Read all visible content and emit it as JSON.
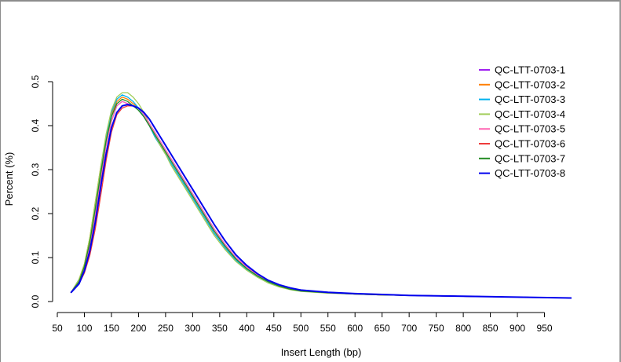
{
  "chart_data": {
    "type": "line",
    "title": "",
    "xlabel": "Insert Length (bp)",
    "ylabel": "Percent (%)",
    "xlim": [
      50,
      1000
    ],
    "ylim": [
      0,
      0.5
    ],
    "x_ticks": [
      50,
      100,
      150,
      200,
      250,
      300,
      350,
      400,
      450,
      500,
      550,
      600,
      650,
      700,
      750,
      800,
      850,
      900,
      950
    ],
    "y_ticks": [
      0.0,
      0.1,
      0.2,
      0.3,
      0.4,
      0.5
    ],
    "y_tick_labels": [
      "0.0",
      "0.1",
      "0.2",
      "0.3",
      "0.4",
      "0.5"
    ],
    "x_points": [
      75,
      90,
      100,
      110,
      120,
      130,
      140,
      150,
      160,
      170,
      180,
      190,
      200,
      210,
      220,
      230,
      240,
      250,
      260,
      270,
      280,
      290,
      300,
      320,
      340,
      360,
      380,
      400,
      420,
      440,
      460,
      480,
      500,
      550,
      600,
      650,
      700,
      800,
      900,
      1000
    ],
    "legend_position": "top-right",
    "grid": false,
    "series": [
      {
        "name": "QC-LTT-0703-1",
        "color": "#A020F0",
        "values": [
          0.02,
          0.045,
          0.075,
          0.125,
          0.195,
          0.275,
          0.355,
          0.41,
          0.445,
          0.455,
          0.45,
          0.445,
          0.44,
          0.425,
          0.405,
          0.385,
          0.365,
          0.345,
          0.325,
          0.305,
          0.285,
          0.265,
          0.245,
          0.205,
          0.165,
          0.13,
          0.1,
          0.078,
          0.06,
          0.046,
          0.036,
          0.029,
          0.025,
          0.02,
          0.017,
          0.015,
          0.014,
          0.012,
          0.01,
          0.008
        ]
      },
      {
        "name": "QC-LTT-0703-2",
        "color": "#FF7F00",
        "values": [
          0.02,
          0.05,
          0.085,
          0.145,
          0.225,
          0.305,
          0.375,
          0.425,
          0.455,
          0.465,
          0.46,
          0.45,
          0.44,
          0.42,
          0.4,
          0.375,
          0.355,
          0.335,
          0.315,
          0.295,
          0.275,
          0.255,
          0.235,
          0.195,
          0.155,
          0.122,
          0.094,
          0.073,
          0.056,
          0.043,
          0.034,
          0.028,
          0.024,
          0.02,
          0.017,
          0.015,
          0.014,
          0.012,
          0.01,
          0.008
        ]
      },
      {
        "name": "QC-LTT-0703-3",
        "color": "#00B2EE",
        "values": [
          0.02,
          0.05,
          0.08,
          0.14,
          0.22,
          0.3,
          0.375,
          0.43,
          0.46,
          0.47,
          0.465,
          0.455,
          0.44,
          0.42,
          0.4,
          0.375,
          0.355,
          0.335,
          0.315,
          0.295,
          0.275,
          0.255,
          0.235,
          0.195,
          0.155,
          0.122,
          0.094,
          0.073,
          0.056,
          0.043,
          0.034,
          0.028,
          0.024,
          0.02,
          0.017,
          0.015,
          0.014,
          0.012,
          0.01,
          0.008
        ]
      },
      {
        "name": "QC-LTT-0703-4",
        "color": "#A2CD5A",
        "values": [
          0.02,
          0.05,
          0.085,
          0.145,
          0.225,
          0.305,
          0.38,
          0.435,
          0.465,
          0.475,
          0.475,
          0.465,
          0.45,
          0.43,
          0.405,
          0.38,
          0.355,
          0.335,
          0.31,
          0.29,
          0.27,
          0.25,
          0.23,
          0.19,
          0.15,
          0.118,
          0.091,
          0.071,
          0.055,
          0.042,
          0.033,
          0.027,
          0.023,
          0.019,
          0.017,
          0.015,
          0.014,
          0.012,
          0.01,
          0.008
        ]
      },
      {
        "name": "QC-LTT-0703-5",
        "color": "#FF69B4",
        "values": [
          0.02,
          0.045,
          0.075,
          0.125,
          0.195,
          0.275,
          0.355,
          0.41,
          0.445,
          0.455,
          0.45,
          0.445,
          0.44,
          0.425,
          0.405,
          0.385,
          0.365,
          0.345,
          0.325,
          0.305,
          0.285,
          0.265,
          0.245,
          0.205,
          0.165,
          0.13,
          0.1,
          0.078,
          0.06,
          0.046,
          0.036,
          0.029,
          0.025,
          0.02,
          0.017,
          0.015,
          0.014,
          0.012,
          0.01,
          0.008
        ]
      },
      {
        "name": "QC-LTT-0703-6",
        "color": "#EE3B3B",
        "values": [
          0.02,
          0.04,
          0.065,
          0.105,
          0.165,
          0.24,
          0.32,
          0.385,
          0.425,
          0.44,
          0.445,
          0.445,
          0.44,
          0.43,
          0.415,
          0.395,
          0.375,
          0.355,
          0.335,
          0.315,
          0.295,
          0.275,
          0.255,
          0.215,
          0.175,
          0.138,
          0.106,
          0.082,
          0.063,
          0.048,
          0.038,
          0.031,
          0.026,
          0.021,
          0.018,
          0.016,
          0.014,
          0.012,
          0.01,
          0.008
        ]
      },
      {
        "name": "QC-LTT-0703-7",
        "color": "#228B22",
        "values": [
          0.02,
          0.045,
          0.08,
          0.135,
          0.21,
          0.29,
          0.365,
          0.42,
          0.45,
          0.46,
          0.455,
          0.445,
          0.435,
          0.42,
          0.4,
          0.38,
          0.36,
          0.34,
          0.32,
          0.3,
          0.28,
          0.26,
          0.24,
          0.2,
          0.16,
          0.126,
          0.097,
          0.075,
          0.058,
          0.045,
          0.035,
          0.028,
          0.024,
          0.02,
          0.017,
          0.015,
          0.014,
          0.012,
          0.01,
          0.008
        ]
      },
      {
        "name": "QC-LTT-0703-8",
        "color": "#0000EE",
        "values": [
          0.02,
          0.04,
          0.07,
          0.115,
          0.18,
          0.26,
          0.335,
          0.395,
          0.43,
          0.445,
          0.448,
          0.445,
          0.44,
          0.43,
          0.415,
          0.395,
          0.375,
          0.355,
          0.335,
          0.315,
          0.295,
          0.275,
          0.255,
          0.215,
          0.175,
          0.138,
          0.106,
          0.082,
          0.063,
          0.048,
          0.038,
          0.031,
          0.026,
          0.021,
          0.018,
          0.016,
          0.014,
          0.012,
          0.01,
          0.008
        ]
      }
    ]
  }
}
